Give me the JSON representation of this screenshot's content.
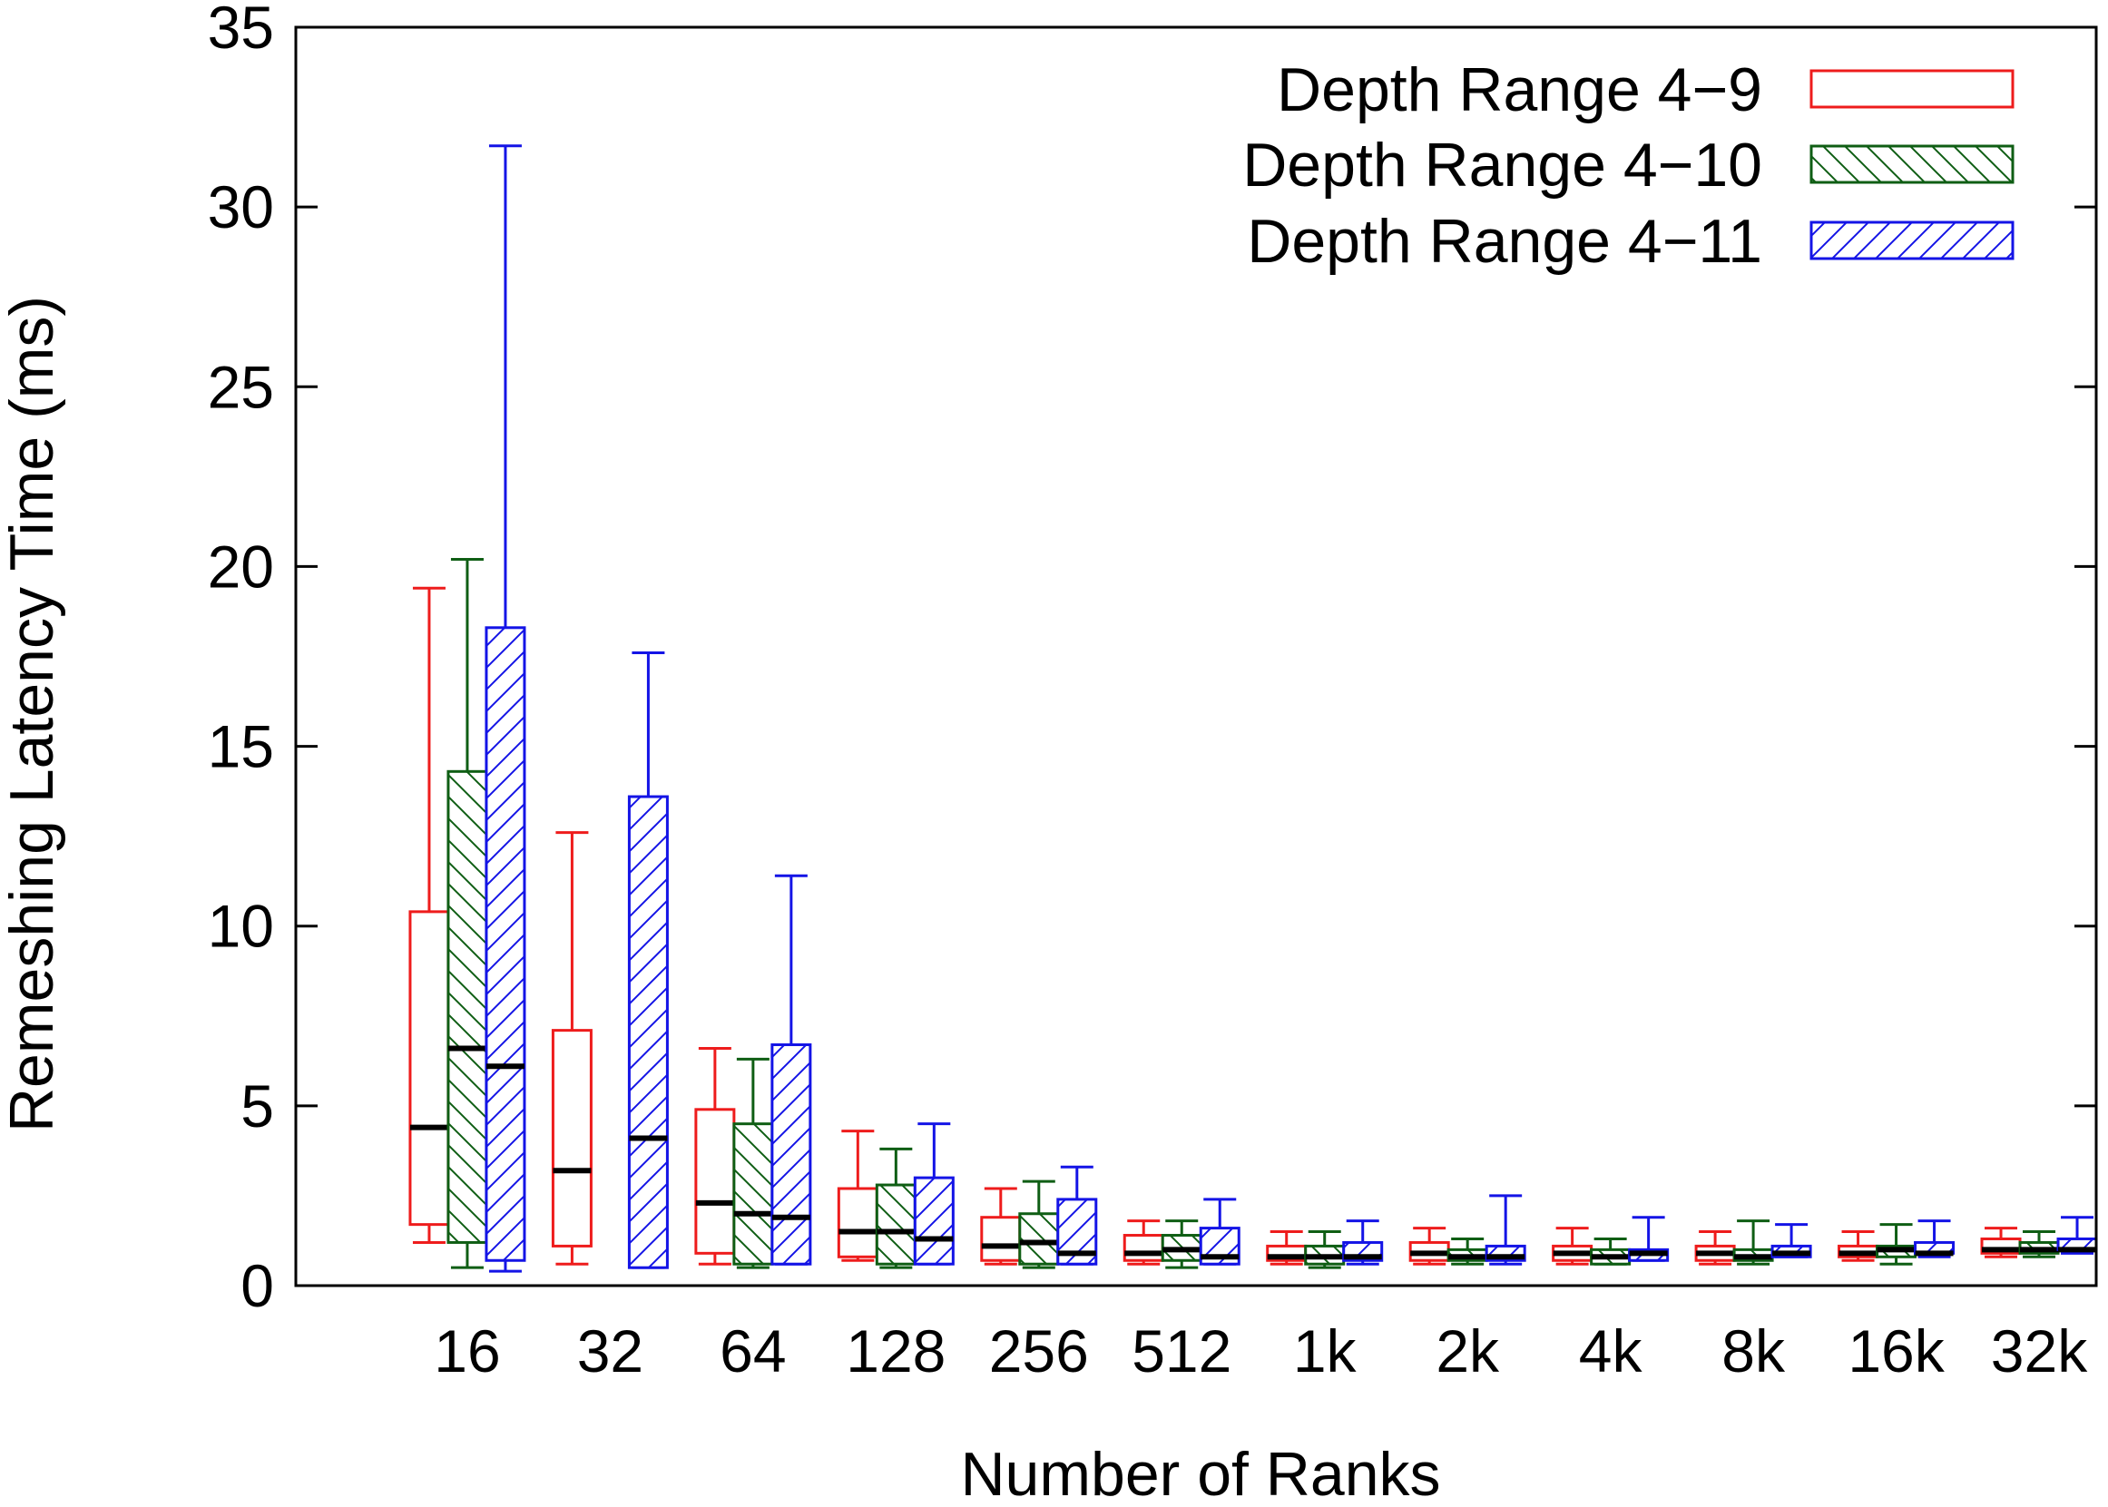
{
  "chart_data": {
    "type": "boxplot",
    "title": "",
    "xlabel": "Number of Ranks",
    "ylabel": "Remeshing Latency Time (ms)",
    "ylim": [
      0,
      35
    ],
    "yticks": [
      0,
      5,
      10,
      15,
      20,
      25,
      30,
      35
    ],
    "categories": [
      "16",
      "32",
      "64",
      "128",
      "256",
      "512",
      "1k",
      "2k",
      "4k",
      "8k",
      "16k",
      "32k"
    ],
    "grid": false,
    "legend_position": "top-right",
    "series": [
      {
        "name": "Depth Range 4−9",
        "color": "#ee1c1c",
        "pattern": "none",
        "boxes": [
          {
            "min": 1.2,
            "q1": 1.7,
            "median": 4.4,
            "q3": 10.4,
            "max": 19.4
          },
          {
            "min": 0.6,
            "q1": 1.1,
            "median": 3.2,
            "q3": 7.1,
            "max": 12.6
          },
          {
            "min": 0.6,
            "q1": 0.9,
            "median": 2.3,
            "q3": 4.9,
            "max": 6.6
          },
          {
            "min": 0.7,
            "q1": 0.8,
            "median": 1.5,
            "q3": 2.7,
            "max": 4.3
          },
          {
            "min": 0.6,
            "q1": 0.7,
            "median": 1.1,
            "q3": 1.9,
            "max": 2.7
          },
          {
            "min": 0.6,
            "q1": 0.7,
            "median": 0.9,
            "q3": 1.4,
            "max": 1.8
          },
          {
            "min": 0.6,
            "q1": 0.7,
            "median": 0.8,
            "q3": 1.1,
            "max": 1.5
          },
          {
            "min": 0.6,
            "q1": 0.7,
            "median": 0.9,
            "q3": 1.2,
            "max": 1.6
          },
          {
            "min": 0.6,
            "q1": 0.7,
            "median": 0.9,
            "q3": 1.1,
            "max": 1.6
          },
          {
            "min": 0.6,
            "q1": 0.7,
            "median": 0.9,
            "q3": 1.1,
            "max": 1.5
          },
          {
            "min": 0.7,
            "q1": 0.8,
            "median": 0.9,
            "q3": 1.1,
            "max": 1.5
          },
          {
            "min": 0.8,
            "q1": 0.9,
            "median": 1.0,
            "q3": 1.3,
            "max": 1.6
          }
        ]
      },
      {
        "name": "Depth Range 4−10",
        "color": "#0f5e14",
        "pattern": "back-diagonal",
        "boxes": [
          {
            "min": 0.5,
            "q1": 1.2,
            "median": 6.6,
            "q3": 14.3,
            "max": 20.2
          },
          null,
          {
            "min": 0.5,
            "q1": 0.6,
            "median": 2.0,
            "q3": 4.5,
            "max": 6.3
          },
          {
            "min": 0.5,
            "q1": 0.6,
            "median": 1.5,
            "q3": 2.8,
            "max": 3.8
          },
          {
            "min": 0.5,
            "q1": 0.6,
            "median": 1.2,
            "q3": 2.0,
            "max": 2.9
          },
          {
            "min": 0.5,
            "q1": 0.7,
            "median": 1.0,
            "q3": 1.4,
            "max": 1.8
          },
          {
            "min": 0.5,
            "q1": 0.6,
            "median": 0.8,
            "q3": 1.1,
            "max": 1.5
          },
          {
            "min": 0.6,
            "q1": 0.7,
            "median": 0.8,
            "q3": 1.0,
            "max": 1.3
          },
          {
            "min": 0.6,
            "q1": 0.6,
            "median": 0.8,
            "q3": 1.0,
            "max": 1.3
          },
          {
            "min": 0.6,
            "q1": 0.7,
            "median": 0.8,
            "q3": 1.0,
            "max": 1.8
          },
          {
            "min": 0.6,
            "q1": 0.8,
            "median": 1.0,
            "q3": 1.1,
            "max": 1.7
          },
          {
            "min": 0.8,
            "q1": 0.9,
            "median": 1.0,
            "q3": 1.2,
            "max": 1.5
          }
        ]
      },
      {
        "name": "Depth Range 4−11",
        "color": "#1414e6",
        "pattern": "forward-diagonal",
        "boxes": [
          {
            "min": 0.4,
            "q1": 0.7,
            "median": 6.1,
            "q3": 18.3,
            "max": 31.7
          },
          {
            "min": 0.5,
            "q1": 0.5,
            "median": 4.1,
            "q3": 13.6,
            "max": 17.6
          },
          {
            "min": 0.6,
            "q1": 0.6,
            "median": 1.9,
            "q3": 6.7,
            "max": 11.4
          },
          {
            "min": 0.6,
            "q1": 0.6,
            "median": 1.3,
            "q3": 3.0,
            "max": 4.5
          },
          {
            "min": 0.6,
            "q1": 0.6,
            "median": 0.9,
            "q3": 2.4,
            "max": 3.3
          },
          {
            "min": 0.6,
            "q1": 0.6,
            "median": 0.8,
            "q3": 1.6,
            "max": 2.4
          },
          {
            "min": 0.6,
            "q1": 0.7,
            "median": 0.8,
            "q3": 1.2,
            "max": 1.8
          },
          {
            "min": 0.6,
            "q1": 0.7,
            "median": 0.8,
            "q3": 1.1,
            "max": 2.5
          },
          {
            "min": 0.7,
            "q1": 0.7,
            "median": 0.9,
            "q3": 1.0,
            "max": 1.9
          },
          {
            "min": 0.8,
            "q1": 0.8,
            "median": 0.9,
            "q3": 1.1,
            "max": 1.7
          },
          {
            "min": 0.8,
            "q1": 0.9,
            "median": 0.9,
            "q3": 1.2,
            "max": 1.8
          },
          {
            "min": 0.9,
            "q1": 1.0,
            "median": 1.0,
            "q3": 1.3,
            "max": 1.9
          }
        ]
      }
    ]
  }
}
